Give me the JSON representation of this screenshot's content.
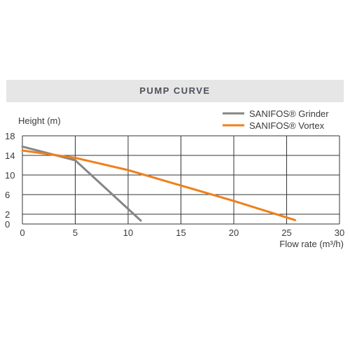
{
  "header": {
    "title": "PUMP CURVE"
  },
  "chart_data": {
    "type": "line",
    "xlabel": "Flow rate (m³/h)",
    "ylabel": "Height (m)",
    "xlim": [
      0,
      30
    ],
    "ylim": [
      0,
      18
    ],
    "x_ticks": [
      "0",
      "5",
      "10",
      "15",
      "20",
      "25",
      "30"
    ],
    "y_ticks": [
      "0",
      "2",
      "6",
      "10",
      "14",
      "18"
    ],
    "x_tick_values": [
      0,
      5,
      10,
      15,
      20,
      25,
      30
    ],
    "y_tick_values": [
      0,
      2,
      6,
      10,
      14,
      18
    ],
    "grid": true,
    "legend": "top-right",
    "series": [
      {
        "name": "SANIFOS® Grinder",
        "color": "#858585",
        "x": [
          0,
          5,
          11.2
        ],
        "y": [
          15.8,
          13.0,
          0.7
        ]
      },
      {
        "name": "SANIFOS® Vortex",
        "color": "#ef7f1a",
        "x": [
          0,
          5,
          10,
          20,
          25.8
        ],
        "y": [
          15.0,
          13.5,
          11.0,
          4.7,
          0.8
        ]
      }
    ]
  }
}
